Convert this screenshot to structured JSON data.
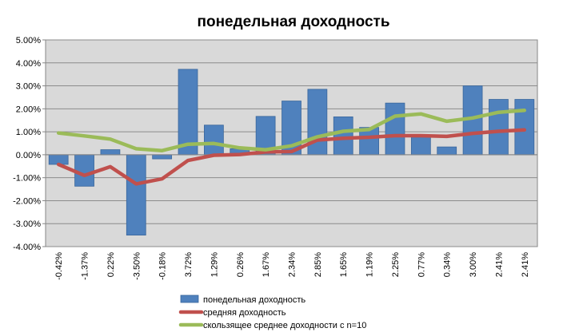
{
  "chart_data": {
    "type": "bar",
    "title": "понедельная доходность",
    "xlabel": "",
    "ylabel": "",
    "ylim": [
      -0.04,
      0.05
    ],
    "y_ticks": [
      0.05,
      0.04,
      0.03,
      0.02,
      0.01,
      0.0,
      -0.01,
      -0.02,
      -0.03,
      -0.04
    ],
    "y_tick_labels": [
      "5.00%",
      "4.00%",
      "3.00%",
      "2.00%",
      "1.00%",
      "0.00%",
      "-1.00%",
      "-2.00%",
      "-3.00%",
      "-4.00%"
    ],
    "grid": "horizontal",
    "legend_position": "bottom",
    "categories": [
      "-0.42%",
      "-1.37%",
      "0.22%",
      "-3.50%",
      "-0.18%",
      "3.72%",
      "1.29%",
      "0.26%",
      "1.67%",
      "2.34%",
      "2.85%",
      "1.65%",
      "1.19%",
      "2.25%",
      "0.77%",
      "0.34%",
      "3.00%",
      "2.41%",
      "2.41%"
    ],
    "series": [
      {
        "name": "понедельная доходность",
        "type": "bar",
        "color": "#4f81bd",
        "values": [
          -0.0042,
          -0.0137,
          0.0022,
          -0.035,
          -0.0018,
          0.0372,
          0.0129,
          0.0026,
          0.0167,
          0.0234,
          0.0285,
          0.0165,
          0.0119,
          0.0225,
          0.0077,
          0.0034,
          0.03,
          0.0241,
          0.0241
        ]
      },
      {
        "name": "средняя доходность",
        "type": "line",
        "color": "#c0504d",
        "values": [
          -0.0042,
          -0.009,
          -0.0052,
          -0.0127,
          -0.0105,
          -0.0025,
          -0.0002,
          0.0001,
          0.0012,
          0.0014,
          0.0064,
          0.0072,
          0.0076,
          0.0083,
          0.0083,
          0.008,
          0.0093,
          0.0102,
          0.0108
        ]
      },
      {
        "name": "скользящее среднее доходности с n=10",
        "type": "line",
        "color": "#9bbb59",
        "values": [
          0.0095,
          0.0082,
          0.0068,
          0.0026,
          0.0018,
          0.0046,
          0.0049,
          0.003,
          0.0022,
          0.0039,
          0.0078,
          0.0102,
          0.011,
          0.0168,
          0.0178,
          0.0146,
          0.016,
          0.0185,
          0.0193
        ]
      }
    ]
  }
}
